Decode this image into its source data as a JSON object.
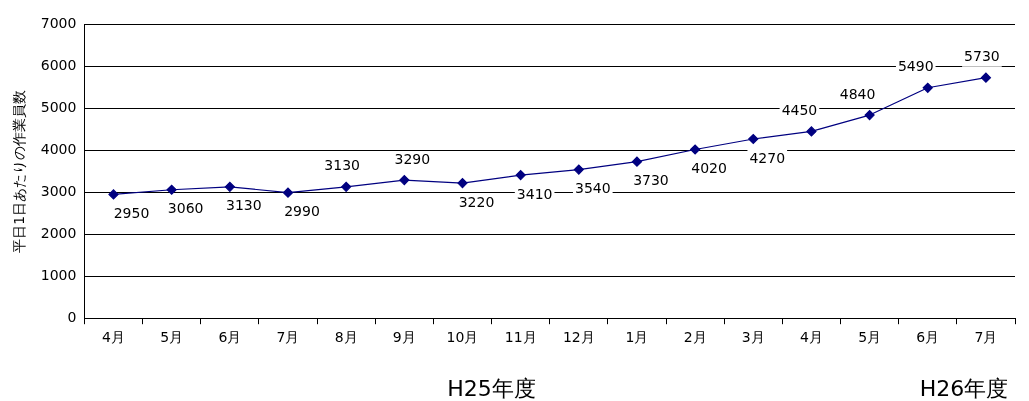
{
  "chart_data": {
    "type": "line",
    "ylabel": "平日1日あたりの作業員数",
    "categories": [
      "4月",
      "5月",
      "6月",
      "7月",
      "8月",
      "9月",
      "10月",
      "11月",
      "12月",
      "1月",
      "2月",
      "3月",
      "4月",
      "5月",
      "6月",
      "7月"
    ],
    "series": [
      {
        "color": "#000080",
        "values": [
          2950,
          3060,
          3130,
          2990,
          3130,
          3290,
          3220,
          3410,
          3540,
          3730,
          4020,
          4270,
          4450,
          4840,
          5490,
          5730
        ]
      }
    ],
    "ylim": [
      0,
      7000
    ],
    "yticks": [
      0,
      1000,
      2000,
      3000,
      4000,
      5000,
      6000,
      7000
    ],
    "grid": "y",
    "marker": "diamond",
    "data_labels": true,
    "legend": false,
    "annotations": [
      "H25年度",
      "H26年度"
    ]
  }
}
